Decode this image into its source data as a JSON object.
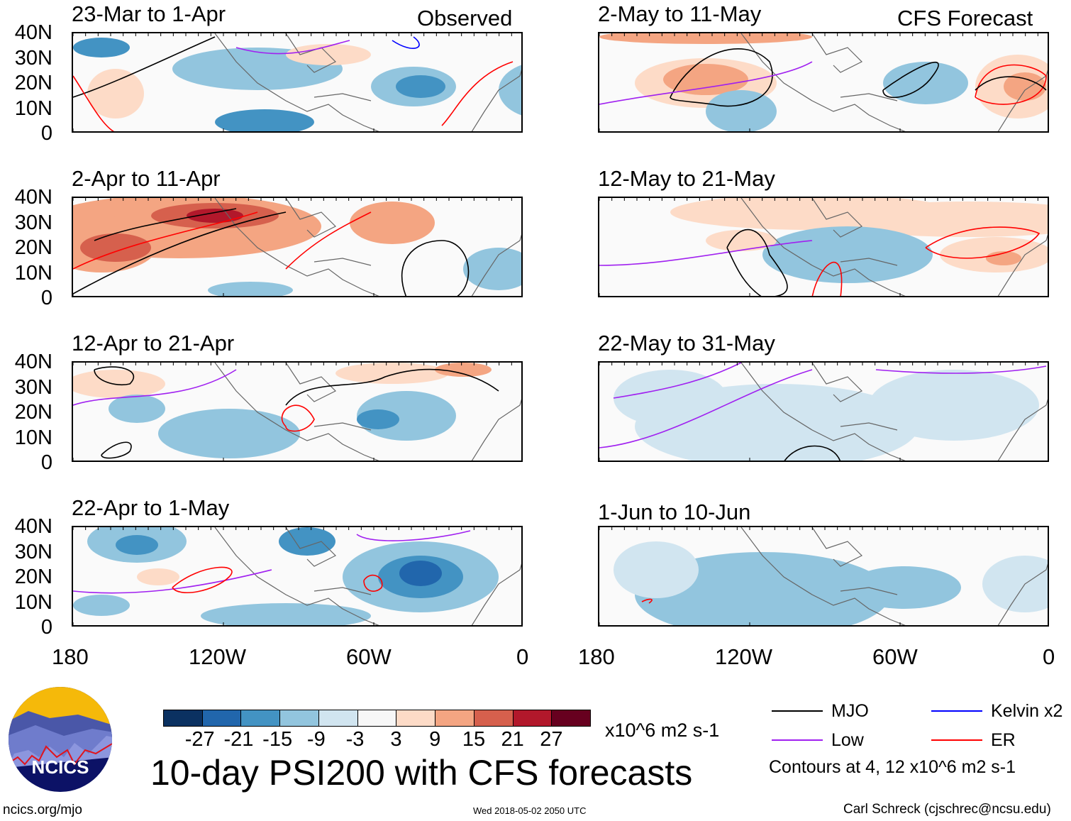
{
  "header": {
    "observed_label": "Observed",
    "forecast_label": "CFS Forecast"
  },
  "panels_observed": [
    {
      "title": "23-Mar to 1-Apr"
    },
    {
      "title": "2-Apr to 11-Apr"
    },
    {
      "title": "12-Apr to 21-Apr"
    },
    {
      "title": "22-Apr to 1-May"
    }
  ],
  "panels_forecast": [
    {
      "title": "2-May to 11-May"
    },
    {
      "title": "12-May to 21-May"
    },
    {
      "title": "22-May to 31-May"
    },
    {
      "title": "1-Jun to 10-Jun"
    }
  ],
  "lat_labels": [
    "40N",
    "30N",
    "20N",
    "10N",
    "0"
  ],
  "lon_labels": [
    "180",
    "120W",
    "60W",
    "0"
  ],
  "colorbar": {
    "colors": [
      "#0b3161",
      "#2166ac",
      "#4393c3",
      "#92c5de",
      "#d1e5f0",
      "#f7f7f7",
      "#fddbc7",
      "#f4a582",
      "#d6604d",
      "#b2182b",
      "#67001f"
    ],
    "labels": [
      "-27",
      "-21",
      "-15",
      "-9",
      "-3",
      "3",
      "9",
      "15",
      "21",
      "27"
    ],
    "units": "x10^6 m2 s-1"
  },
  "legend": {
    "items": [
      {
        "label": "MJO",
        "color": "#000000"
      },
      {
        "label": "Kelvin x2",
        "color": "#0000ff"
      },
      {
        "label": "Low",
        "color": "#a020f0"
      },
      {
        "label": "ER",
        "color": "#ff0000"
      }
    ],
    "contours_note": "Contours at 4, 12 x10^6 m2 s-1"
  },
  "title": "10-day PSI200 with CFS forecasts",
  "logo_text": "NCICS",
  "footer": {
    "url": "ncics.org/mjo",
    "timestamp": "Wed 2018-05-02 2050 UTC",
    "credit": "Carl Schreck (cjschrec@ncsu.edu)"
  }
}
